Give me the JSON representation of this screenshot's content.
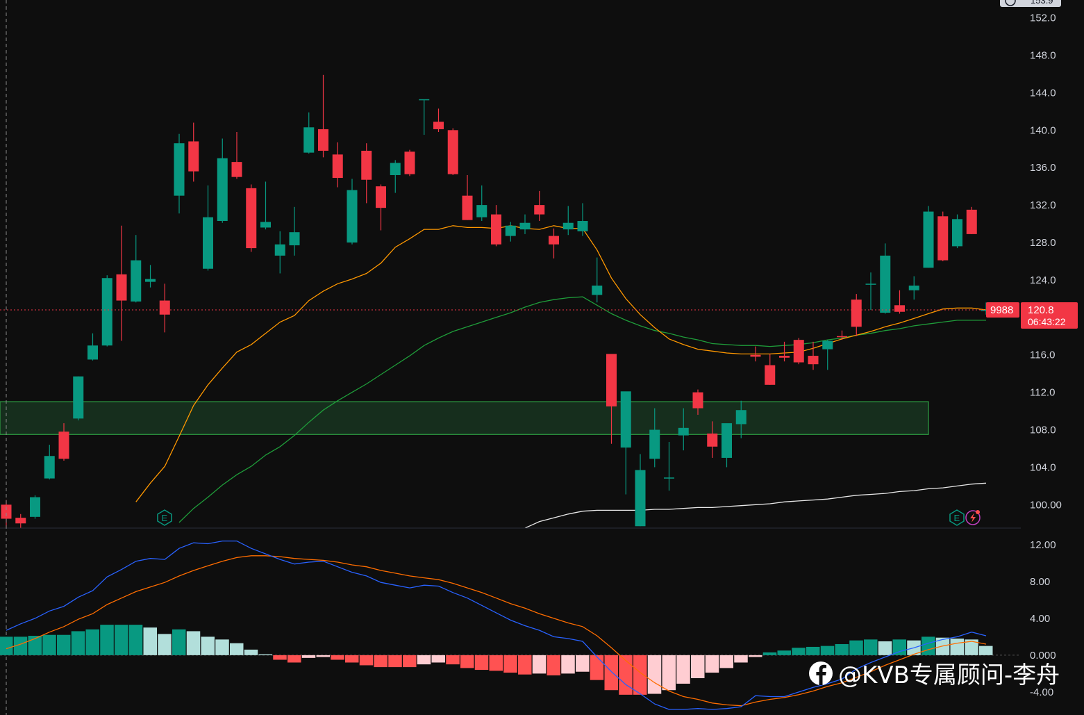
{
  "colors": {
    "background": "#0e0e0e",
    "up": "#089981",
    "down": "#f23645",
    "ma_fast": "#ff9800",
    "ma_mid": "#1f9d3a",
    "ma_slow": "#e8e8e8",
    "zone_fill": "#17321f",
    "zone_border": "#2ea043",
    "macd_line": "#2962ff",
    "signal_line": "#ff6d00",
    "hist_up_strong": "#089981",
    "hist_up_weak": "#b2dfdb",
    "hist_down_strong": "#ff5252",
    "hist_down_weak": "#ffcdd2",
    "axis_text": "#d1d4dc",
    "price_tag": "#f23645"
  },
  "price_tag": {
    "volume_label": "9988",
    "price": "120.8",
    "countdown": "06:43:22"
  },
  "top_price_label": "153.9",
  "watermark": {
    "icon": "facebook-icon",
    "text": "@KVB专属顾问-李舟"
  },
  "markers": {
    "earnings": "E",
    "dividend_icon": "lightning-icon"
  },
  "chart_data": [
    {
      "type": "candlestick",
      "price_axis_ticks": [
        "152.0",
        "148.0",
        "144.0",
        "140.0",
        "136.0",
        "132.0",
        "128.0",
        "124.0",
        "120.0",
        "116.0",
        "112.0",
        "108.0",
        "104.0",
        "100.00"
      ],
      "ylim": [
        97.5,
        153.9
      ],
      "current_price": 120.8,
      "support_zone": [
        107.5,
        111.0
      ],
      "candles": [
        [
          100,
          97.5,
          100.5,
          98.5
        ],
        [
          98.6,
          97.5,
          99.0,
          98.0
        ],
        [
          98.7,
          98.5,
          101.0,
          100.8
        ],
        [
          102.8,
          102.7,
          106.4,
          105.2
        ],
        [
          107.8,
          104.7,
          108.7,
          104.9
        ],
        [
          109.2,
          109.0,
          113.7,
          113.7
        ],
        [
          115.5,
          115.4,
          118.3,
          117.0
        ],
        [
          117.0,
          116.9,
          124.5,
          124.2
        ],
        [
          124.6,
          117.5,
          129.8,
          121.8
        ],
        [
          121.7,
          121.6,
          128.8,
          126.1
        ],
        [
          123.8,
          123.2,
          125.6,
          124.1
        ],
        [
          121.8,
          118.4,
          123.6,
          120.3
        ],
        [
          133.0,
          131.1,
          139.6,
          138.6
        ],
        [
          138.8,
          134.5,
          140.8,
          135.6
        ],
        [
          125.2,
          125.0,
          134.1,
          130.7
        ],
        [
          130.3,
          130.1,
          139.1,
          137.0
        ],
        [
          136.6,
          134.8,
          139.8,
          135.0
        ],
        [
          133.8,
          127.0,
          134.2,
          127.4
        ],
        [
          129.6,
          129.4,
          134.5,
          130.2
        ],
        [
          126.6,
          124.7,
          129.2,
          127.8
        ],
        [
          127.7,
          126.6,
          131.8,
          129.1
        ],
        [
          137.6,
          137.5,
          141.9,
          140.3
        ],
        [
          140.1,
          137.1,
          145.9,
          137.8
        ],
        [
          137.4,
          133.9,
          138.7,
          134.9
        ],
        [
          128.0,
          127.8,
          134.8,
          133.6
        ],
        [
          137.8,
          132.2,
          138.6,
          134.7
        ],
        [
          134.0,
          129.3,
          134.2,
          131.7
        ],
        [
          135.2,
          133.3,
          136.8,
          136.5
        ],
        [
          137.7,
          135.1,
          137.9,
          135.3
        ],
        [
          143.3,
          139.5,
          143.2,
          143.3
        ],
        [
          140.9,
          139.8,
          142.3,
          140.1
        ],
        [
          140.0,
          135.2,
          140.2,
          135.3
        ],
        [
          133.0,
          130.4,
          135.2,
          130.4
        ],
        [
          130.7,
          130.3,
          134.1,
          132.0
        ],
        [
          131.0,
          127.6,
          132.0,
          127.8
        ],
        [
          128.7,
          128.1,
          130.2,
          129.8
        ],
        [
          129.4,
          128.9,
          131.0,
          130.1
        ],
        [
          132.0,
          130.3,
          133.5,
          131.0
        ],
        [
          128.7,
          126.3,
          129.5,
          127.8
        ],
        [
          129.4,
          128.8,
          131.9,
          130.1
        ],
        [
          129.2,
          128.7,
          132.2,
          130.3
        ],
        [
          122.4,
          121.6,
          126.4,
          123.4
        ],
        [
          116.1,
          106.5,
          113.0,
          110.5
        ],
        [
          106.1,
          101.1,
          111.8,
          112.1
        ],
        [
          97.7,
          97.7,
          105.4,
          103.7
        ],
        [
          104.9,
          104.0,
          110.3,
          108.0
        ],
        [
          102.9,
          101.5,
          106.7,
          102.9
        ],
        [
          107.4,
          105.8,
          110.3,
          108.2
        ],
        [
          112.0,
          109.6,
          112.3,
          110.3
        ],
        [
          107.6,
          105.0,
          108.9,
          106.2
        ],
        [
          105.0,
          104.0,
          108.5,
          108.7
        ],
        [
          108.6,
          107.1,
          111.1,
          110.1
        ],
        [
          116.0,
          115.3,
          116.9,
          115.8
        ],
        [
          114.9,
          112.8,
          116.1,
          112.8
        ],
        [
          115.9,
          115.3,
          117.4,
          115.7
        ],
        [
          117.6,
          115.0,
          117.8,
          115.2
        ],
        [
          115.9,
          114.4,
          117.4,
          115.0
        ],
        [
          116.6,
          114.4,
          117.6,
          117.5
        ],
        [
          118.0,
          117.6,
          118.6,
          117.9
        ],
        [
          121.9,
          118.0,
          122.5,
          119.0
        ],
        [
          123.6,
          120.8,
          124.8,
          123.6
        ],
        [
          120.5,
          120.4,
          127.9,
          126.6
        ],
        [
          121.3,
          120.4,
          122.9,
          120.6
        ],
        [
          122.9,
          121.9,
          124.4,
          123.4
        ],
        [
          125.3,
          125.3,
          131.9,
          131.3
        ],
        [
          130.8,
          126.0,
          131.3,
          126.1
        ],
        [
          127.6,
          127.4,
          131.0,
          130.5
        ],
        [
          131.5,
          128.9,
          131.8,
          128.9
        ],
        [
          120.8,
          120.3,
          121.6,
          120.8
        ]
      ],
      "ma_fast_values": [
        null,
        null,
        null,
        null,
        null,
        null,
        null,
        null,
        null,
        100.3,
        102.3,
        104.1,
        107.3,
        110.6,
        112.8,
        114.6,
        116.3,
        117.1,
        118.3,
        119.5,
        120.2,
        121.8,
        122.8,
        123.6,
        124.1,
        124.7,
        125.8,
        127.5,
        128.4,
        129.4,
        129.4,
        129.8,
        129.6,
        129.6,
        129.5,
        129.8,
        129.5,
        129.4,
        129.8,
        129.5,
        129.5,
        127.2,
        124.2,
        122.0,
        120.3,
        118.9,
        117.7,
        117.1,
        116.6,
        116.4,
        116.2,
        116.1,
        116.1,
        116.1,
        116.2,
        116.3,
        116.7,
        117.2,
        117.7,
        118.1,
        118.5,
        119.0,
        119.4,
        119.9,
        120.4,
        120.9,
        121.0,
        121.0,
        120.8
      ],
      "ma_mid_values": [
        null,
        null,
        null,
        null,
        null,
        null,
        null,
        null,
        null,
        null,
        null,
        null,
        98.1,
        99.6,
        100.8,
        102.1,
        103.2,
        104.1,
        105.3,
        106.2,
        107.4,
        108.8,
        110.1,
        111.1,
        112.0,
        112.9,
        113.9,
        114.9,
        115.9,
        117.0,
        117.8,
        118.5,
        119.0,
        119.5,
        120.0,
        120.5,
        121.1,
        121.6,
        121.9,
        122.1,
        122.2,
        121.3,
        120.4,
        119.7,
        119.1,
        118.6,
        118.3,
        117.9,
        117.6,
        117.2,
        117.1,
        117.0,
        117.0,
        116.9,
        117.0,
        117.1,
        117.3,
        117.6,
        117.8,
        118.1,
        118.3,
        118.6,
        118.8,
        119.1,
        119.3,
        119.5,
        119.7,
        119.7,
        119.7
      ],
      "ma_slow_values": [
        null,
        null,
        null,
        null,
        null,
        null,
        null,
        null,
        null,
        null,
        null,
        null,
        null,
        null,
        null,
        null,
        null,
        null,
        null,
        null,
        null,
        null,
        null,
        null,
        null,
        null,
        null,
        null,
        null,
        null,
        null,
        null,
        null,
        null,
        null,
        null,
        97.5,
        98.2,
        98.6,
        99.0,
        99.3,
        99.4,
        99.4,
        99.4,
        99.4,
        99.5,
        99.5,
        99.6,
        99.7,
        99.7,
        99.8,
        99.9,
        100.0,
        100.1,
        100.3,
        100.4,
        100.5,
        100.6,
        100.8,
        101.0,
        101.1,
        101.2,
        101.4,
        101.5,
        101.7,
        101.8,
        102.0,
        102.2,
        102.3
      ]
    },
    {
      "type": "macd",
      "ylim": [
        -6.5,
        13.8
      ],
      "axis_ticks": [
        "12.00",
        "8.00",
        "4.00",
        "0.000",
        "-4.00"
      ],
      "macd": [
        2.7,
        3.4,
        4.0,
        4.8,
        5.3,
        6.3,
        7.0,
        8.5,
        9.3,
        10.2,
        10.5,
        10.4,
        11.6,
        12.2,
        12.1,
        12.4,
        12.4,
        11.6,
        11.0,
        10.4,
        9.9,
        10.1,
        10.2,
        9.6,
        9.0,
        8.6,
        7.9,
        7.6,
        7.3,
        7.6,
        7.5,
        6.8,
        6.2,
        5.4,
        4.6,
        3.8,
        3.2,
        2.7,
        2.0,
        1.8,
        1.5,
        -0.2,
        -1.8,
        -3.2,
        -4.2,
        -5.3,
        -5.9,
        -5.9,
        -5.8,
        -5.9,
        -5.8,
        -5.6,
        -4.4,
        -4.5,
        -4.5,
        -4.0,
        -3.5,
        -3.1,
        -2.6,
        -1.5,
        -0.8,
        -0.2,
        0.4,
        0.8,
        1.3,
        1.7,
        2.0,
        2.5,
        2.1
      ],
      "signal": [
        0.7,
        1.2,
        1.8,
        2.5,
        3.1,
        3.9,
        4.5,
        5.5,
        6.2,
        6.9,
        7.4,
        7.9,
        8.6,
        9.2,
        9.7,
        10.2,
        10.6,
        10.8,
        10.8,
        10.7,
        10.5,
        10.4,
        10.3,
        10.1,
        9.8,
        9.6,
        9.2,
        8.9,
        8.6,
        8.4,
        8.2,
        7.8,
        7.3,
        6.8,
        6.2,
        5.6,
        5.1,
        4.5,
        4.0,
        3.5,
        3.1,
        2.1,
        0.8,
        -0.6,
        -1.9,
        -3.0,
        -3.9,
        -4.5,
        -4.8,
        -5.2,
        -5.4,
        -5.5,
        -5.1,
        -4.8,
        -4.6,
        -4.3,
        -3.9,
        -3.4,
        -3.0,
        -2.4,
        -1.8,
        -1.1,
        -0.5,
        0.1,
        0.6,
        1.0,
        1.3,
        1.5,
        1.2
      ],
      "histogram": [
        2.0,
        2.0,
        2.1,
        2.2,
        2.2,
        2.6,
        2.8,
        3.3,
        3.3,
        3.3,
        3.0,
        2.3,
        2.8,
        2.6,
        2.0,
        1.7,
        1.3,
        0.6,
        0.1,
        -0.5,
        -0.8,
        -0.3,
        -0.2,
        -0.5,
        -0.8,
        -1.1,
        -1.3,
        -1.3,
        -1.3,
        -1.0,
        -0.8,
        -1.0,
        -1.4,
        -1.6,
        -1.7,
        -1.9,
        -2.1,
        -2.0,
        -2.2,
        -2.0,
        -1.8,
        -2.7,
        -3.8,
        -4.3,
        -4.3,
        -4.2,
        -3.8,
        -3.1,
        -2.5,
        -1.9,
        -1.4,
        -0.8,
        -0.2,
        0.3,
        0.5,
        0.8,
        0.9,
        1.0,
        1.2,
        1.6,
        1.7,
        1.5,
        1.7,
        1.6,
        2.0,
        1.9,
        1.8,
        1.7,
        1.0
      ]
    }
  ]
}
